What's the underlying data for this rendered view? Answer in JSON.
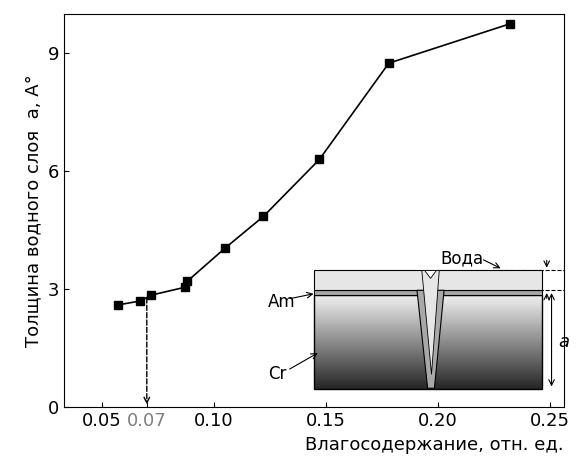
{
  "chart_data": {
    "type": "line",
    "x_label": "Влагосодержание, отн. ед.",
    "y_label": "Толщина водного слоя  a, A°",
    "x": [
      0.057,
      0.067,
      0.072,
      0.087,
      0.088,
      0.105,
      0.122,
      0.147,
      0.178,
      0.232
    ],
    "values": [
      2.6,
      2.7,
      2.85,
      3.05,
      3.2,
      4.05,
      4.85,
      6.3,
      8.75,
      9.75
    ],
    "color": "#000000",
    "marker": "s",
    "line_style": "solid",
    "xlim": [
      0.033,
      0.256
    ],
    "ylim": [
      0,
      10
    ],
    "xticks": [
      0.05,
      {
        "value": 0.07,
        "label": "0.07"
      },
      {
        "value": 0.1,
        "label": "0.10"
      },
      0.15,
      {
        "value": 0.2,
        "label": "0.20"
      },
      0.25
    ],
    "yticks": [
      0,
      3,
      6,
      9
    ],
    "grid": false,
    "annotations": [
      {
        "x": 0.07,
        "y": 2.85,
        "line_style": "dashed",
        "color": "#808080"
      }
    ]
  },
  "inset": {
    "water": "Вода",
    "amorphous": "Am",
    "substrate": "Cr",
    "thickness": "a"
  }
}
